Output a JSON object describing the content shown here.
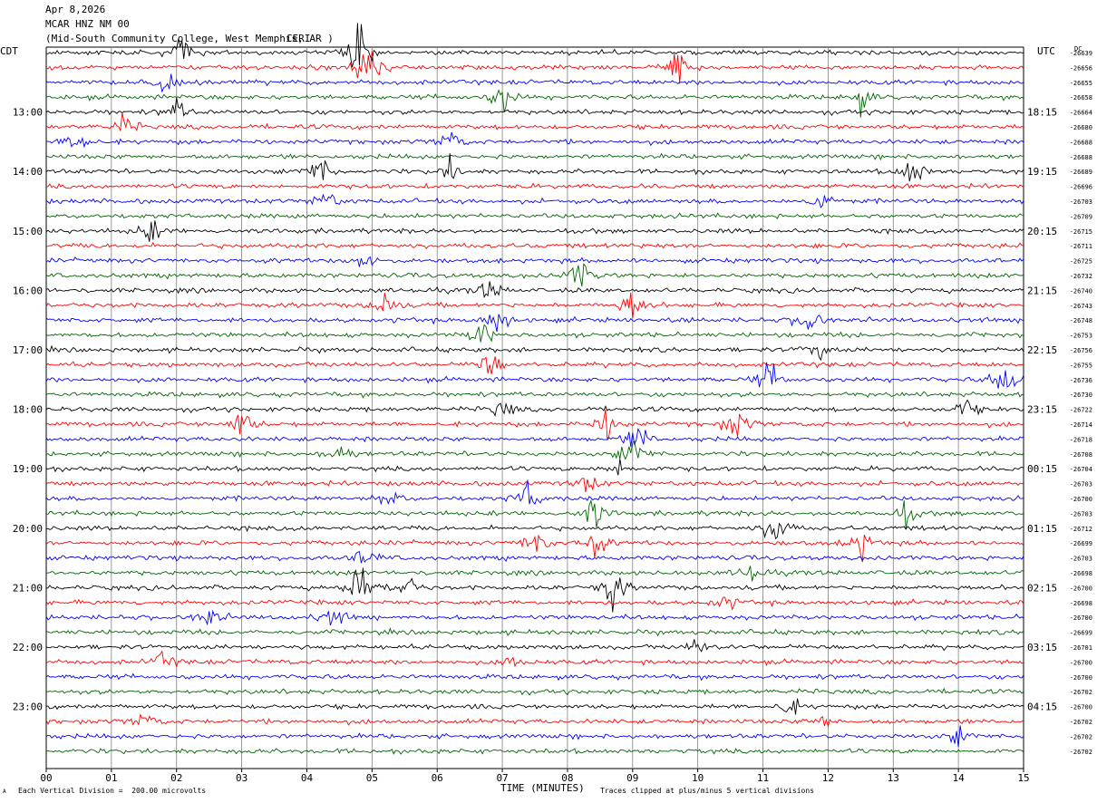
{
  "header": {
    "date": "Apr 8,2026",
    "station": "MCAR HNZ NM 00",
    "location": "(Mid-South Community College, West Memphis, AR )",
    "network": "CERI"
  },
  "left_tz": "CDT",
  "right_tz": "UTC",
  "dc_label": "DC",
  "footer": {
    "division": "Each Vertical Division =  200.00 microvolts",
    "clip": "Traces clipped at plus/minus 5 vertical divisions",
    "corner_mark": "A"
  },
  "colors": {
    "cycle": [
      "#000000",
      "#ff0000",
      "#0000ff",
      "#006400"
    ],
    "grid": "#808080"
  },
  "chart_data": {
    "type": "line",
    "title": "",
    "xlabel": "TIME (MINUTES)",
    "xlim": [
      0,
      15
    ],
    "x_ticks": [
      "00",
      "01",
      "02",
      "03",
      "04",
      "05",
      "06",
      "07",
      "08",
      "09",
      "10",
      "11",
      "12",
      "13",
      "14",
      "15"
    ],
    "left_hour_labels": [
      "13:00",
      "14:00",
      "15:00",
      "16:00",
      "17:00",
      "18:00",
      "19:00",
      "20:00",
      "21:00",
      "22:00",
      "23:00"
    ],
    "right_hour_labels": [
      "18:15",
      "19:15",
      "20:15",
      "21:15",
      "22:15",
      "23:15",
      "00:15",
      "01:15",
      "02:15",
      "03:15",
      "04:15"
    ],
    "dc_offsets": [
      -26639,
      -26656,
      -26655,
      -26658,
      -26664,
      -26680,
      -26688,
      -26688,
      -26689,
      -26696,
      -26703,
      -26709,
      -26715,
      -26711,
      -26725,
      -26732,
      -26740,
      -26743,
      -26748,
      -26753,
      -26756,
      -26755,
      -26736,
      -26730,
      -26722,
      -26714,
      -26718,
      -26708,
      -26704,
      -26703,
      -26700,
      -26703,
      -26712,
      -26699,
      -26703,
      -26698,
      -26700,
      -26698,
      -26700,
      -26699,
      -26701,
      -26700,
      -26700,
      -26702,
      -26700,
      -26702,
      -26702,
      -26702
    ],
    "events": [
      {
        "trace": 0,
        "minute": 4.8,
        "amp": 5
      },
      {
        "trace": 0,
        "minute": 2.1,
        "amp": 3
      },
      {
        "trace": 1,
        "minute": 4.95,
        "amp": 5
      },
      {
        "trace": 1,
        "minute": 9.7,
        "amp": 4
      },
      {
        "trace": 2,
        "minute": 1.8,
        "amp": 2
      },
      {
        "trace": 3,
        "minute": 7.0,
        "amp": 3
      },
      {
        "trace": 3,
        "minute": 12.5,
        "amp": 2
      },
      {
        "trace": 4,
        "minute": 2.0,
        "amp": 2
      },
      {
        "trace": 5,
        "minute": 1.2,
        "amp": 2
      },
      {
        "trace": 6,
        "minute": 0.5,
        "amp": 3
      },
      {
        "trace": 6,
        "minute": 6.2,
        "amp": 2
      },
      {
        "trace": 8,
        "minute": 4.2,
        "amp": 3
      },
      {
        "trace": 8,
        "minute": 6.2,
        "amp": 2
      },
      {
        "trace": 8,
        "minute": 13.3,
        "amp": 3
      },
      {
        "trace": 10,
        "minute": 4.3,
        "amp": 2
      },
      {
        "trace": 10,
        "minute": 11.9,
        "amp": 2
      },
      {
        "trace": 12,
        "minute": 1.6,
        "amp": 2
      },
      {
        "trace": 14,
        "minute": 4.9,
        "amp": 2
      },
      {
        "trace": 15,
        "minute": 8.2,
        "amp": 3
      },
      {
        "trace": 16,
        "minute": 6.8,
        "amp": 2
      },
      {
        "trace": 17,
        "minute": 5.2,
        "amp": 3
      },
      {
        "trace": 17,
        "minute": 9.0,
        "amp": 3
      },
      {
        "trace": 18,
        "minute": 6.9,
        "amp": 3
      },
      {
        "trace": 18,
        "minute": 11.7,
        "amp": 3
      },
      {
        "trace": 19,
        "minute": 6.7,
        "amp": 3
      },
      {
        "trace": 20,
        "minute": 11.8,
        "amp": 2
      },
      {
        "trace": 21,
        "minute": 6.8,
        "amp": 3
      },
      {
        "trace": 22,
        "minute": 11.1,
        "amp": 3
      },
      {
        "trace": 22,
        "minute": 14.7,
        "amp": 4
      },
      {
        "trace": 24,
        "minute": 7.0,
        "amp": 2
      },
      {
        "trace": 24,
        "minute": 14.1,
        "amp": 2
      },
      {
        "trace": 25,
        "minute": 3.0,
        "amp": 3
      },
      {
        "trace": 25,
        "minute": 8.6,
        "amp": 3
      },
      {
        "trace": 25,
        "minute": 10.6,
        "amp": 3
      },
      {
        "trace": 26,
        "minute": 9.1,
        "amp": 3
      },
      {
        "trace": 27,
        "minute": 4.5,
        "amp": 2
      },
      {
        "trace": 27,
        "minute": 9.0,
        "amp": 3
      },
      {
        "trace": 28,
        "minute": 8.8,
        "amp": 2
      },
      {
        "trace": 29,
        "minute": 8.3,
        "amp": 2
      },
      {
        "trace": 30,
        "minute": 7.4,
        "amp": 3
      },
      {
        "trace": 30,
        "minute": 5.3,
        "amp": 2
      },
      {
        "trace": 31,
        "minute": 8.4,
        "amp": 3
      },
      {
        "trace": 31,
        "minute": 13.2,
        "amp": 2
      },
      {
        "trace": 32,
        "minute": 11.2,
        "amp": 4
      },
      {
        "trace": 33,
        "minute": 8.4,
        "amp": 3
      },
      {
        "trace": 33,
        "minute": 12.5,
        "amp": 3
      },
      {
        "trace": 33,
        "minute": 7.5,
        "amp": 3
      },
      {
        "trace": 34,
        "minute": 4.9,
        "amp": 2
      },
      {
        "trace": 35,
        "minute": 10.8,
        "amp": 2
      },
      {
        "trace": 36,
        "minute": 4.8,
        "amp": 5
      },
      {
        "trace": 36,
        "minute": 5.5,
        "amp": 3
      },
      {
        "trace": 36,
        "minute": 8.7,
        "amp": 4
      },
      {
        "trace": 37,
        "minute": 10.4,
        "amp": 1.5
      },
      {
        "trace": 38,
        "minute": 2.5,
        "amp": 2
      },
      {
        "trace": 38,
        "minute": 4.4,
        "amp": 2
      },
      {
        "trace": 40,
        "minute": 10.0,
        "amp": 1.5
      },
      {
        "trace": 41,
        "minute": 1.8,
        "amp": 1.5
      },
      {
        "trace": 41,
        "minute": 7.2,
        "amp": 1.5
      },
      {
        "trace": 44,
        "minute": 11.4,
        "amp": 2
      },
      {
        "trace": 45,
        "minute": 1.5,
        "amp": 1.5
      },
      {
        "trace": 45,
        "minute": 11.9,
        "amp": 1.5
      },
      {
        "trace": 46,
        "minute": 14.0,
        "amp": 1.5
      }
    ]
  }
}
